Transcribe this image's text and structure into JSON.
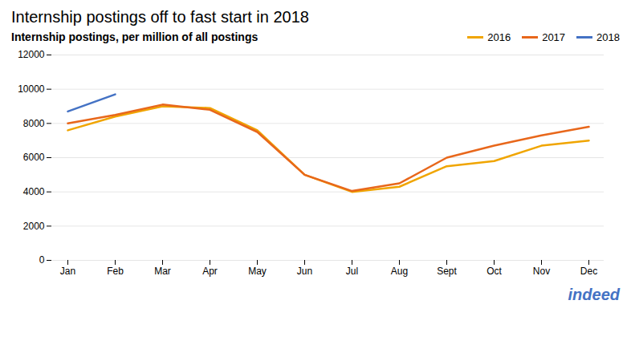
{
  "chart_data": {
    "type": "line",
    "title": "Internship postings off to fast start in 2018",
    "subtitle": "Internship postings, per million of all postings",
    "categories": [
      "Jan",
      "Feb",
      "Mar",
      "Apr",
      "May",
      "Jun",
      "Jul",
      "Aug",
      "Sept",
      "Oct",
      "Nov",
      "Dec"
    ],
    "series": [
      {
        "name": "2016",
        "color": "#f0a500",
        "values": [
          7600,
          8400,
          9000,
          8900,
          7600,
          5000,
          4000,
          4300,
          5500,
          5800,
          6700,
          7000
        ]
      },
      {
        "name": "2017",
        "color": "#e8671b",
        "values": [
          8000,
          8500,
          9100,
          8800,
          7500,
          5000,
          4050,
          4500,
          6000,
          6700,
          7300,
          7800
        ]
      },
      {
        "name": "2018",
        "color": "#4472c4",
        "values": [
          8700,
          9700,
          null,
          null,
          null,
          null,
          null,
          null,
          null,
          null,
          null,
          null
        ]
      }
    ],
    "ylim": [
      0,
      12000
    ],
    "yticks": [
      0,
      2000,
      4000,
      6000,
      8000,
      10000,
      12000
    ],
    "grid": true,
    "legend": "upper right",
    "annotations": [
      {
        "text": "indeed",
        "color": "#4472c4"
      }
    ]
  }
}
